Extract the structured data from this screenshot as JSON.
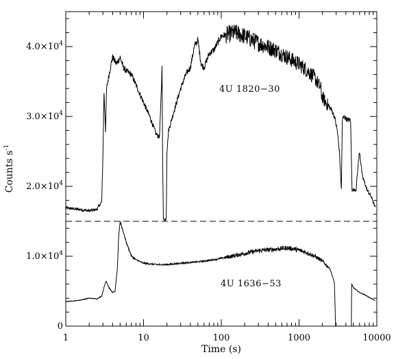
{
  "chart_data": {
    "type": "line",
    "title": "",
    "xlabel": "Time (s)",
    "ylabel": "Counts s-1",
    "ylabel_main": "Counts s",
    "ylabel_sup": "-1",
    "x_scale": "log",
    "xlim": [
      1,
      10000
    ],
    "ylim": [
      0,
      45000
    ],
    "x_ticks": [
      1,
      10,
      100,
      1000,
      10000
    ],
    "x_tick_labels": [
      "1",
      "10",
      "100",
      "1000",
      "10000"
    ],
    "y_ticks": [
      0,
      10000,
      20000,
      30000,
      40000
    ],
    "y_tick_labels": [
      {
        "mantissa": "0",
        "exp": ""
      },
      {
        "mantissa": "1.0×10",
        "exp": "4"
      },
      {
        "mantissa": "2.0×10",
        "exp": "4"
      },
      {
        "mantissa": "3.0×10",
        "exp": "4"
      },
      {
        "mantissa": "4.0×10",
        "exp": "4"
      }
    ],
    "grid": false,
    "separator_level": 15000,
    "annotations": [
      "4U 1820−30",
      "4U 1636−53"
    ],
    "series": [
      {
        "name": "4U 1820−30",
        "color": "#000000",
        "points": [
          [
            1.0,
            16900
          ],
          [
            1.5,
            16700
          ],
          [
            2.0,
            16500
          ],
          [
            2.5,
            16700
          ],
          [
            2.9,
            17800
          ],
          [
            3.0,
            24000
          ],
          [
            3.1,
            33500
          ],
          [
            3.25,
            28000
          ],
          [
            3.35,
            34000
          ],
          [
            3.6,
            36000
          ],
          [
            4.0,
            38500
          ],
          [
            4.5,
            37500
          ],
          [
            5.0,
            38500
          ],
          [
            5.5,
            37000
          ],
          [
            6.0,
            36500
          ],
          [
            7.0,
            36000
          ],
          [
            8.0,
            34500
          ],
          [
            10.0,
            32000
          ],
          [
            12.0,
            30000
          ],
          [
            14.5,
            27500
          ],
          [
            16.0,
            27000
          ],
          [
            17.0,
            34000
          ],
          [
            17.3,
            37500
          ],
          [
            17.6,
            24000
          ],
          [
            18.0,
            15300
          ],
          [
            19.0,
            15200
          ],
          [
            19.6,
            15500
          ],
          [
            20.0,
            25000
          ],
          [
            21.0,
            28000
          ],
          [
            25.0,
            31000
          ],
          [
            30.0,
            34000
          ],
          [
            35.0,
            36000
          ],
          [
            40.0,
            37000
          ],
          [
            45.0,
            40000
          ],
          [
            50.0,
            41000
          ],
          [
            55.0,
            37500
          ],
          [
            60.0,
            37000
          ],
          [
            70.0,
            39000
          ],
          [
            80.0,
            39500
          ],
          [
            100.0,
            41500
          ],
          [
            150.0,
            42000
          ],
          [
            200.0,
            41500
          ],
          [
            300.0,
            40500
          ],
          [
            500.0,
            39500
          ],
          [
            700.0,
            38500
          ],
          [
            1000.0,
            37500
          ],
          [
            1300.0,
            36500
          ],
          [
            1600.0,
            35500
          ],
          [
            1900.0,
            34000
          ],
          [
            1950.0,
            33000
          ],
          [
            2200.0,
            32000
          ],
          [
            2600.0,
            31000
          ],
          [
            2850.0,
            30000
          ],
          [
            3100.0,
            28000
          ],
          [
            3300.0,
            25000
          ],
          [
            3500.0,
            19500
          ],
          [
            3600.0,
            29500
          ],
          [
            3800.0,
            30000
          ],
          [
            4200.0,
            29500
          ],
          [
            4600.0,
            29500
          ],
          [
            4800.0,
            19500
          ],
          [
            5400.0,
            19500
          ],
          [
            5800.0,
            23500
          ],
          [
            6000.0,
            25000
          ],
          [
            6500.0,
            21500
          ],
          [
            7500.0,
            19500
          ],
          [
            8500.0,
            18500
          ],
          [
            9500.0,
            17000
          ]
        ]
      },
      {
        "name": "4U 1636−53",
        "color": "#000000",
        "points": [
          [
            1.0,
            3500
          ],
          [
            1.5,
            3700
          ],
          [
            2.0,
            4000
          ],
          [
            2.5,
            3900
          ],
          [
            2.9,
            4300
          ],
          [
            3.1,
            5500
          ],
          [
            3.3,
            6500
          ],
          [
            3.6,
            5500
          ],
          [
            4.0,
            4800
          ],
          [
            4.3,
            5000
          ],
          [
            4.6,
            8000
          ],
          [
            4.8,
            13000
          ],
          [
            5.0,
            15000
          ],
          [
            5.5,
            13500
          ],
          [
            6.0,
            12000
          ],
          [
            7.0,
            10000
          ],
          [
            8.0,
            9500
          ],
          [
            10.0,
            9000
          ],
          [
            15.0,
            8800
          ],
          [
            20.0,
            8800
          ],
          [
            30.0,
            9000
          ],
          [
            50.0,
            9200
          ],
          [
            70.0,
            9400
          ],
          [
            100.0,
            9700
          ],
          [
            150.0,
            10100
          ],
          [
            200.0,
            10400
          ],
          [
            300.0,
            10800
          ],
          [
            500.0,
            11000
          ],
          [
            700.0,
            11200
          ],
          [
            900.0,
            11000
          ],
          [
            1200.0,
            10600
          ],
          [
            1600.0,
            10000
          ],
          [
            2000.0,
            9300
          ],
          [
            2500.0,
            8200
          ],
          [
            2850.0,
            6200
          ],
          [
            2950.0,
            0
          ],
          [
            4200.0,
            0
          ],
          [
            4700.0,
            0
          ],
          [
            4750.0,
            6000
          ],
          [
            5000.0,
            5500
          ],
          [
            6000.0,
            4800
          ],
          [
            7000.0,
            4500
          ],
          [
            8000.0,
            4100
          ],
          [
            9000.0,
            3800
          ],
          [
            9500.0,
            3600
          ]
        ]
      }
    ]
  }
}
